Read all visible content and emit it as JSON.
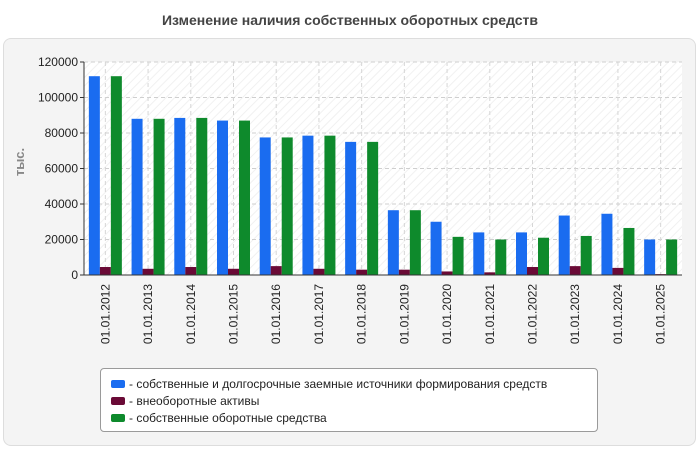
{
  "title": "Изменение наличия собственных оборотных средств",
  "chart_data": {
    "type": "bar",
    "title": "Изменение наличия собственных оборотных средств",
    "ylabel": "тыс.",
    "xlabel": "",
    "ylim": [
      0,
      120000
    ],
    "yticks": [
      "0",
      "20000",
      "40000",
      "60000",
      "80000",
      "100000",
      "120000"
    ],
    "grid": true,
    "legend_position": "bottom",
    "categories": [
      "01.01.2012",
      "01.01.2013",
      "01.01.2014",
      "01.01.2015",
      "01.01.2016",
      "01.01.2017",
      "01.01.2018",
      "01.01.2019",
      "01.01.2020",
      "01.01.2021",
      "01.01.2022",
      "01.01.2023",
      "01.01.2024",
      "01.01.2025"
    ],
    "series": [
      {
        "name": "- собственные и долгосрочные заемные источники формирования средств",
        "color": "#1a6cf0",
        "values": [
          112000,
          88000,
          88500,
          87000,
          77500,
          78500,
          75000,
          36500,
          30000,
          24000,
          24000,
          33500,
          34500,
          20000
        ]
      },
      {
        "name": "- внеоборотные активы",
        "color": "#6a0a36",
        "values": [
          4500,
          3500,
          4500,
          3500,
          5000,
          3500,
          3000,
          3000,
          2000,
          1500,
          4500,
          5000,
          4000,
          500
        ]
      },
      {
        "name": "- собственные оборотные средства",
        "color": "#0e8a2c",
        "values": [
          112000,
          88000,
          88500,
          87000,
          77500,
          78500,
          75000,
          36500,
          21500,
          20000,
          21000,
          22000,
          26500,
          20000
        ]
      }
    ]
  }
}
